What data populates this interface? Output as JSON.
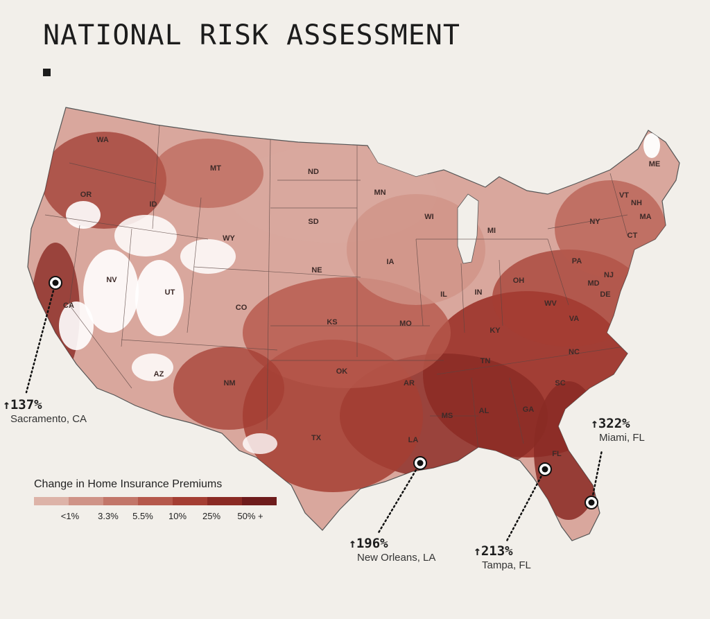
{
  "title": "NATIONAL RISK ASSESSMENT",
  "map": {
    "land_color": "#d9a79d",
    "border_color": "#555555",
    "state_labels": [
      "WA",
      "OR",
      "MT",
      "ID",
      "WY",
      "ND",
      "SD",
      "NE",
      "MN",
      "WI",
      "MI",
      "IA",
      "IL",
      "IN",
      "OH",
      "PA",
      "NY",
      "VT",
      "NH",
      "ME",
      "MA",
      "CT",
      "NJ",
      "MD",
      "DE",
      "WV",
      "VA",
      "KY",
      "TN",
      "NC",
      "SC",
      "GA",
      "AL",
      "MS",
      "LA",
      "AR",
      "MO",
      "KS",
      "OK",
      "TX",
      "NM",
      "CO",
      "UT",
      "NV",
      "CA",
      "AZ",
      "FL"
    ]
  },
  "callouts": [
    {
      "arrow": "↑",
      "value": "137%",
      "city": "Sacramento, CA"
    },
    {
      "arrow": "↑",
      "value": "196%",
      "city": "New Orleans, LA"
    },
    {
      "arrow": "↑",
      "value": "213%",
      "city": "Tampa, FL"
    },
    {
      "arrow": "↑",
      "value": "322%",
      "city": "Miami, FL"
    }
  ],
  "legend": {
    "title": "Change in Home Insurance Premiums",
    "colors": [
      "#ddb3a8",
      "#cf9387",
      "#c27669",
      "#b5584b",
      "#a43e33",
      "#8a2a24",
      "#6e1c1c"
    ],
    "ticks": [
      "<1%",
      "3.3%",
      "5.5%",
      "10%",
      "25%",
      "50% +"
    ]
  }
}
